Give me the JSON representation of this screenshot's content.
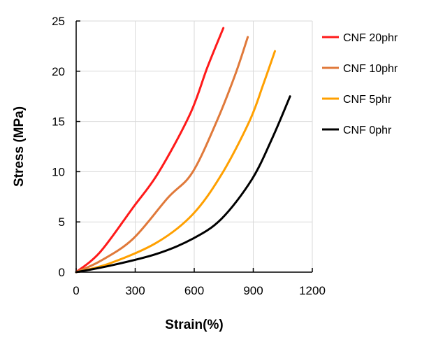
{
  "chart_data": {
    "type": "line",
    "xlabel": "Strain(%)",
    "ylabel": "Stress (MPa)",
    "xlim": [
      0,
      1200
    ],
    "ylim": [
      0,
      25
    ],
    "xticks": [
      0,
      300,
      600,
      900,
      1200
    ],
    "yticks": [
      0,
      5,
      10,
      15,
      20,
      25
    ],
    "grid": true,
    "legend": "right",
    "series": [
      {
        "name": "CNF 20phr",
        "color": "#ff1a1a",
        "x": [
          0,
          122,
          288,
          418,
          578,
          667,
          748
        ],
        "y": [
          0,
          2.0,
          6.4,
          9.9,
          15.7,
          20.4,
          24.3
        ]
      },
      {
        "name": "CNF 10phr",
        "color": "#e0793a",
        "x": [
          0,
          122,
          288,
          466,
          590,
          714,
          809,
          872
        ],
        "y": [
          0,
          1.1,
          3.3,
          7.4,
          9.9,
          15.0,
          19.7,
          23.4
        ]
      },
      {
        "name": "CNF 5phr",
        "color": "#ffa000",
        "x": [
          0,
          169,
          406,
          590,
          738,
          880,
          951,
          1010
        ],
        "y": [
          0,
          0.86,
          2.9,
          5.7,
          9.7,
          15.0,
          18.7,
          22.0
        ]
      },
      {
        "name": "CNF 0phr",
        "color": "#000000",
        "x": [
          0,
          169,
          406,
          590,
          738,
          892,
          998,
          1087
        ],
        "y": [
          0,
          0.63,
          1.8,
          3.3,
          5.3,
          9.2,
          13.4,
          17.5
        ]
      }
    ]
  }
}
